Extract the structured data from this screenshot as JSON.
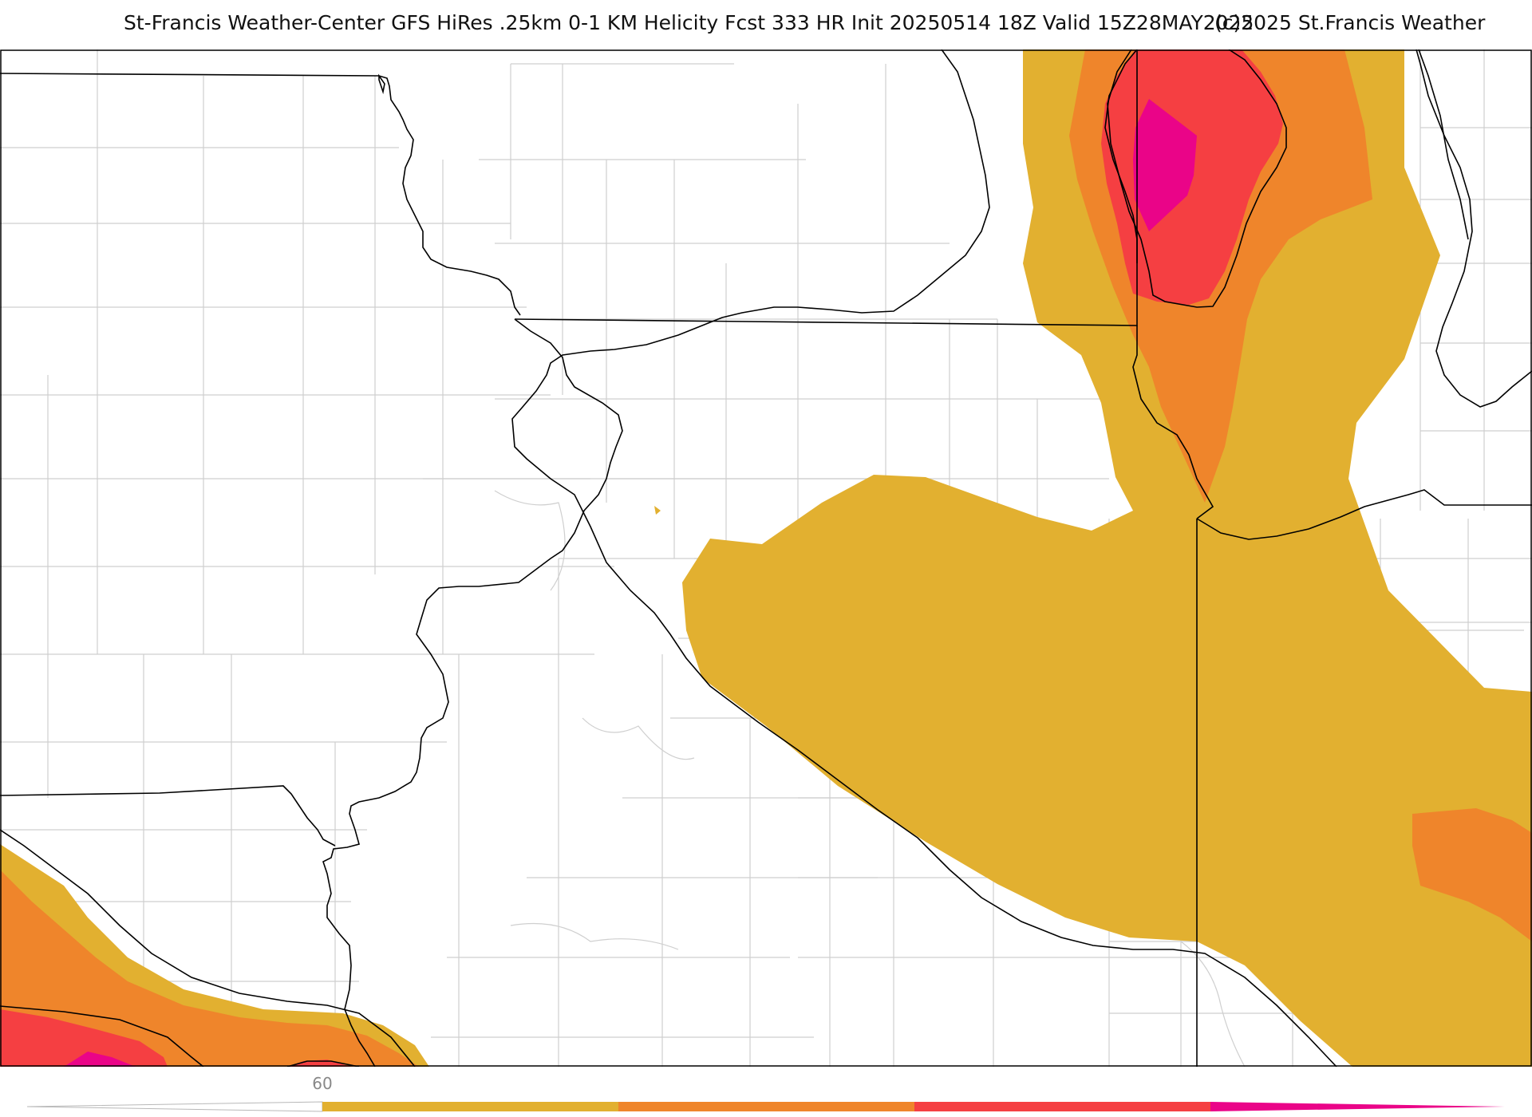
{
  "title": {
    "main": "St-Francis Weather-Center GFS HiRes .25km 0-1 KM Helicity Fcst 333 HR Init 20250514 18Z  Valid 15Z28MAY2025",
    "copyright": "(c)2025 St.Francis Weather"
  },
  "map": {
    "field": "0-1 KM Helicity",
    "colors": {
      "level_1": "#e2b030",
      "level_2": "#ef852b",
      "level_3": "#f53f42",
      "level_4": "#ea0488",
      "county_lines": "#cfcfcf",
      "state_lines": "#000000"
    }
  },
  "colorbar": {
    "tick_label": "60",
    "colors": [
      "#e2b030",
      "#ef852b",
      "#f53f42",
      "#ea0488"
    ]
  }
}
